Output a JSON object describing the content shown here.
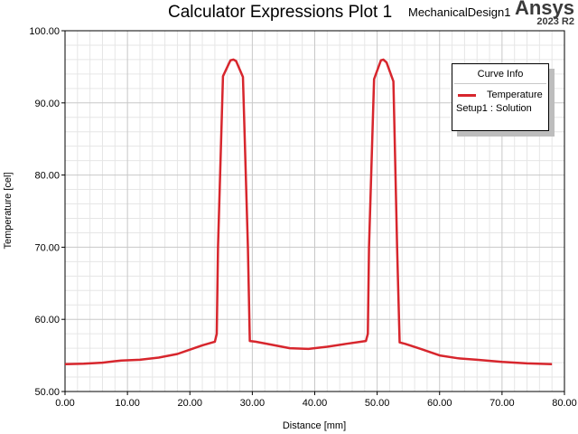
{
  "header": {
    "title": "Calculator Expressions Plot 1",
    "design_name": "MechanicalDesign1",
    "brand": "Ansys",
    "version": "2023 R2"
  },
  "legend": {
    "title": "Curve Info",
    "series_label": "Temperature",
    "setup_label": "Setup1 : Solution"
  },
  "colors": {
    "series": "#d7262d",
    "grid_major": "#c8c8c8",
    "grid_minor": "#e6e6e6"
  },
  "chart_data": {
    "type": "line",
    "title": "Calculator Expressions Plot 1",
    "xlabel": "Distance [mm]",
    "ylabel": "Temperature [cel]",
    "xlim": [
      0,
      80
    ],
    "ylim": [
      50,
      100
    ],
    "xticks": [
      "0.00",
      "10.00",
      "20.00",
      "30.00",
      "40.00",
      "50.00",
      "60.00",
      "70.00",
      "80.00"
    ],
    "yticks": [
      "50.00",
      "60.00",
      "70.00",
      "80.00",
      "90.00",
      "100.00"
    ],
    "grid": true,
    "legend_position": "top-right",
    "series": [
      {
        "name": "Temperature",
        "color": "#d7262d",
        "x": [
          0,
          3,
          6,
          9,
          12,
          15,
          18,
          20,
          22,
          24.0,
          24.3,
          24.5,
          25.3,
          26.5,
          27.0,
          27.4,
          28.5,
          29.3,
          29.6,
          30.5,
          33,
          36,
          39,
          42,
          45,
          48.2,
          48.5,
          48.7,
          49.5,
          50.6,
          51.0,
          51.5,
          52.6,
          53.2,
          53.6,
          54.5,
          57,
          60,
          63,
          66,
          70,
          74,
          78
        ],
        "y": [
          53.8,
          53.85,
          54.0,
          54.3,
          54.4,
          54.7,
          55.2,
          55.8,
          56.4,
          56.9,
          58.0,
          70.0,
          93.7,
          95.9,
          96.0,
          95.8,
          93.6,
          70.0,
          57.0,
          56.9,
          56.5,
          56.0,
          55.9,
          56.2,
          56.6,
          57.0,
          58.0,
          70.0,
          93.3,
          95.9,
          96.0,
          95.6,
          93.0,
          70.0,
          56.8,
          56.6,
          55.9,
          55.0,
          54.6,
          54.4,
          54.1,
          53.9,
          53.8
        ]
      }
    ]
  }
}
